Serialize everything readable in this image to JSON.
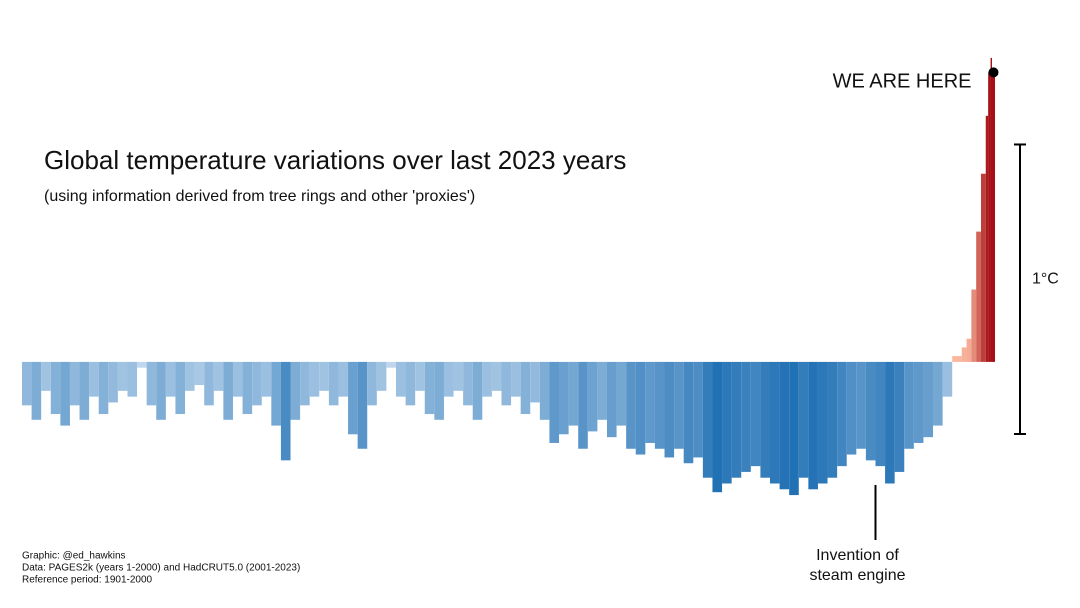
{
  "chart_data": {
    "type": "bar",
    "title": "Global temperature variations over last 2023 years",
    "subtitle": "(using information derived from tree rings and other 'proxies')",
    "credits": [
      "Graphic: @ed_hawkins",
      "Data: PAGES2k (years 1-2000) and HadCRUT5.0 (2001-2023)",
      "Reference period: 1901-2000"
    ],
    "x": [
      0,
      20,
      40,
      60,
      80,
      100,
      120,
      140,
      160,
      180,
      200,
      220,
      240,
      260,
      280,
      300,
      320,
      340,
      360,
      380,
      400,
      420,
      440,
      460,
      480,
      500,
      520,
      540,
      560,
      580,
      600,
      620,
      640,
      660,
      680,
      700,
      720,
      740,
      760,
      780,
      800,
      820,
      840,
      860,
      880,
      900,
      920,
      940,
      960,
      980,
      1000,
      1020,
      1040,
      1060,
      1080,
      1100,
      1120,
      1140,
      1160,
      1180,
      1200,
      1220,
      1240,
      1260,
      1280,
      1300,
      1320,
      1340,
      1360,
      1380,
      1400,
      1420,
      1440,
      1460,
      1480,
      1500,
      1520,
      1540,
      1560,
      1580,
      1600,
      1620,
      1640,
      1660,
      1680,
      1700,
      1720,
      1740,
      1760,
      1780,
      1800,
      1820,
      1840,
      1860,
      1880,
      1900,
      1920,
      1940,
      1960,
      1970,
      1980,
      1990,
      2000,
      2010,
      2015,
      2020,
      2023
    ],
    "values": [
      -0.15,
      -0.2,
      -0.1,
      -0.18,
      -0.22,
      -0.15,
      -0.2,
      -0.12,
      -0.18,
      -0.14,
      -0.1,
      -0.12,
      -0.02,
      -0.15,
      -0.2,
      -0.12,
      -0.18,
      -0.1,
      -0.08,
      -0.15,
      -0.1,
      -0.2,
      -0.12,
      -0.18,
      -0.15,
      -0.12,
      -0.22,
      -0.34,
      -0.2,
      -0.15,
      -0.12,
      -0.1,
      -0.15,
      -0.12,
      -0.25,
      -0.3,
      -0.15,
      -0.1,
      -0.02,
      -0.12,
      -0.15,
      -0.1,
      -0.18,
      -0.2,
      -0.12,
      -0.1,
      -0.15,
      -0.2,
      -0.12,
      -0.1,
      -0.15,
      -0.12,
      -0.18,
      -0.14,
      -0.2,
      -0.28,
      -0.25,
      -0.22,
      -0.3,
      -0.24,
      -0.2,
      -0.26,
      -0.22,
      -0.3,
      -0.32,
      -0.28,
      -0.3,
      -0.33,
      -0.3,
      -0.35,
      -0.33,
      -0.4,
      -0.45,
      -0.42,
      -0.4,
      -0.38,
      -0.36,
      -0.4,
      -0.42,
      -0.44,
      -0.46,
      -0.4,
      -0.44,
      -0.42,
      -0.4,
      -0.36,
      -0.32,
      -0.3,
      -0.34,
      -0.36,
      -0.42,
      -0.38,
      -0.3,
      -0.28,
      -0.26,
      -0.22,
      -0.12,
      0.02,
      0.05,
      0.08,
      0.25,
      0.45,
      0.65,
      0.85,
      1.0,
      1.05,
      1.0
    ],
    "xlim": [
      0,
      2023
    ],
    "ylim": [
      -0.85,
      1.25
    ],
    "negative_colors": [
      "#c6dbef",
      "#2171b5"
    ],
    "positive_colors": [
      "#fcbba1",
      "#a50f15"
    ],
    "marker": {
      "label": "WE ARE HERE"
    },
    "annotation": {
      "x": 1780,
      "lines": [
        "Invention of",
        "steam engine"
      ]
    },
    "scale_bar": {
      "value": 1,
      "label": "1°C"
    }
  }
}
